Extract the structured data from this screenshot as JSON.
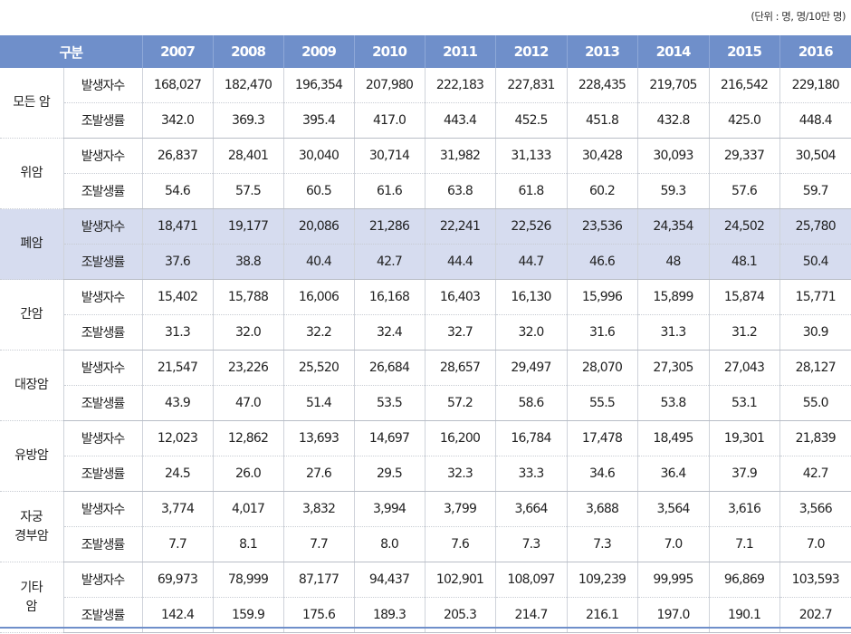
{
  "unit_note": "(단위 : 명, 명/10만 명)",
  "header": {
    "category": "구분",
    "years": [
      "2007",
      "2008",
      "2009",
      "2010",
      "2011",
      "2012",
      "2013",
      "2014",
      "2015",
      "2016"
    ]
  },
  "row_labels": {
    "incidence": "발생자수",
    "rate": "조발생률"
  },
  "groups": [
    {
      "name": "모든 암",
      "incidence": [
        "168,027",
        "182,470",
        "196,354",
        "207,980",
        "222,183",
        "227,831",
        "228,435",
        "219,705",
        "216,542",
        "229,180"
      ],
      "rate": [
        "342.0",
        "369.3",
        "395.4",
        "417.0",
        "443.4",
        "452.5",
        "451.8",
        "432.8",
        "425.0",
        "448.4"
      ]
    },
    {
      "name": "위암",
      "incidence": [
        "26,837",
        "28,401",
        "30,040",
        "30,714",
        "31,982",
        "31,133",
        "30,428",
        "30,093",
        "29,337",
        "30,504"
      ],
      "rate": [
        "54.6",
        "57.5",
        "60.5",
        "61.6",
        "63.8",
        "61.8",
        "60.2",
        "59.3",
        "57.6",
        "59.7"
      ]
    },
    {
      "name": "폐암",
      "highlight": true,
      "incidence": [
        "18,471",
        "19,177",
        "20,086",
        "21,286",
        "22,241",
        "22,526",
        "23,536",
        "24,354",
        "24,502",
        "25,780"
      ],
      "rate": [
        "37.6",
        "38.8",
        "40.4",
        "42.7",
        "44.4",
        "44.7",
        "46.6",
        "48",
        "48.1",
        "50.4"
      ]
    },
    {
      "name": "간암",
      "incidence": [
        "15,402",
        "15,788",
        "16,006",
        "16,168",
        "16,403",
        "16,130",
        "15,996",
        "15,899",
        "15,874",
        "15,771"
      ],
      "rate": [
        "31.3",
        "32.0",
        "32.2",
        "32.4",
        "32.7",
        "32.0",
        "31.6",
        "31.3",
        "31.2",
        "30.9"
      ]
    },
    {
      "name": "대장암",
      "incidence": [
        "21,547",
        "23,226",
        "25,520",
        "26,684",
        "28,657",
        "29,497",
        "28,070",
        "27,305",
        "27,043",
        "28,127"
      ],
      "rate": [
        "43.9",
        "47.0",
        "51.4",
        "53.5",
        "57.2",
        "58.6",
        "55.5",
        "53.8",
        "53.1",
        "55.0"
      ]
    },
    {
      "name": "유방암",
      "incidence": [
        "12,023",
        "12,862",
        "13,693",
        "14,697",
        "16,200",
        "16,784",
        "17,478",
        "18,495",
        "19,301",
        "21,839"
      ],
      "rate": [
        "24.5",
        "26.0",
        "27.6",
        "29.5",
        "32.3",
        "33.3",
        "34.6",
        "36.4",
        "37.9",
        "42.7"
      ]
    },
    {
      "name_lines": [
        "자궁",
        "경부암"
      ],
      "incidence": [
        "3,774",
        "4,017",
        "3,832",
        "3,994",
        "3,799",
        "3,664",
        "3,688",
        "3,564",
        "3,616",
        "3,566"
      ],
      "rate": [
        "7.7",
        "8.1",
        "7.7",
        "8.0",
        "7.6",
        "7.3",
        "7.3",
        "7.0",
        "7.1",
        "7.0"
      ]
    },
    {
      "name_lines": [
        "기타",
        "암"
      ],
      "incidence": [
        "69,973",
        "78,999",
        "87,177",
        "94,437",
        "102,901",
        "108,097",
        "109,239",
        "99,995",
        "96,869",
        "103,593"
      ],
      "rate": [
        "142.4",
        "159.9",
        "175.6",
        "189.3",
        "205.3",
        "214.7",
        "216.1",
        "197.0",
        "190.1",
        "202.7"
      ]
    }
  ],
  "colors": {
    "header_bg": "#6f8fca",
    "highlight_bg": "#d6dcef"
  }
}
